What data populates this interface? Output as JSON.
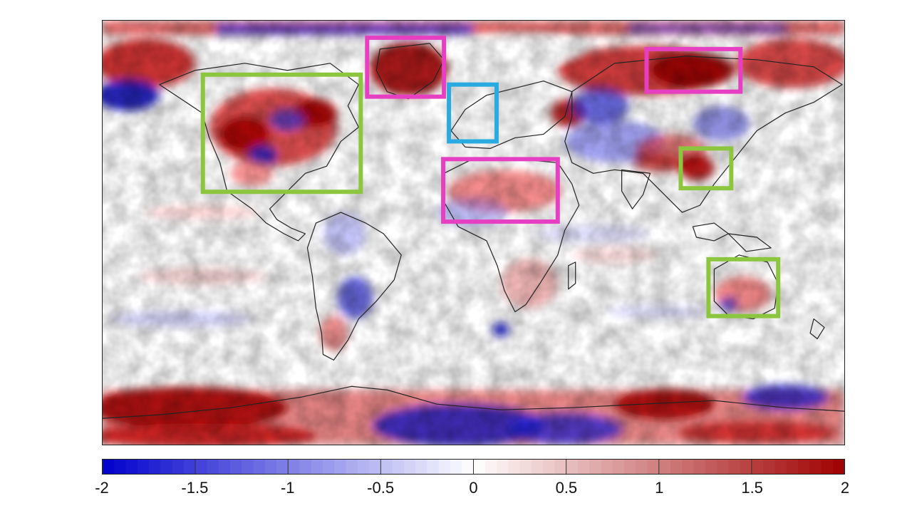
{
  "colorbar": {
    "ticks": [
      "-2",
      "-1.5",
      "-1",
      "-0.5",
      "0",
      "0.5",
      "1",
      "1.5",
      "2"
    ],
    "range": [
      -2,
      2
    ],
    "colors": {
      "low": "#0000cc",
      "mid": "#ffffff",
      "high": "#a00000"
    }
  },
  "highlight_colors": {
    "green": "#8cc63f",
    "magenta": "#e63fc1",
    "blue": "#29abe2"
  }
}
